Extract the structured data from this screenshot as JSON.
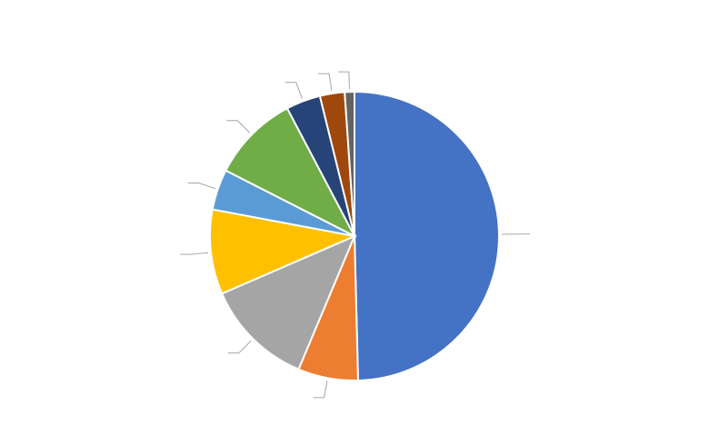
{
  "chart_data": {
    "type": "pie",
    "start_angle_deg": 0,
    "direction": "clockwise",
    "slices": [
      {
        "value": 50.2,
        "color": "#4472C4"
      },
      {
        "value": 6.8,
        "color": "#ED7D31"
      },
      {
        "value": 12.3,
        "color": "#A5A5A5"
      },
      {
        "value": 9.6,
        "color": "#FFC000"
      },
      {
        "value": 4.6,
        "color": "#5B9BD5"
      },
      {
        "value": 9.9,
        "color": "#70AD47"
      },
      {
        "value": 3.9,
        "color": "#264478"
      },
      {
        "value": 2.8,
        "color": "#9E480E"
      },
      {
        "value": 1.1,
        "color": "#636363"
      }
    ],
    "data_labels": "leader-lines-only",
    "legend": "none",
    "title": ""
  }
}
